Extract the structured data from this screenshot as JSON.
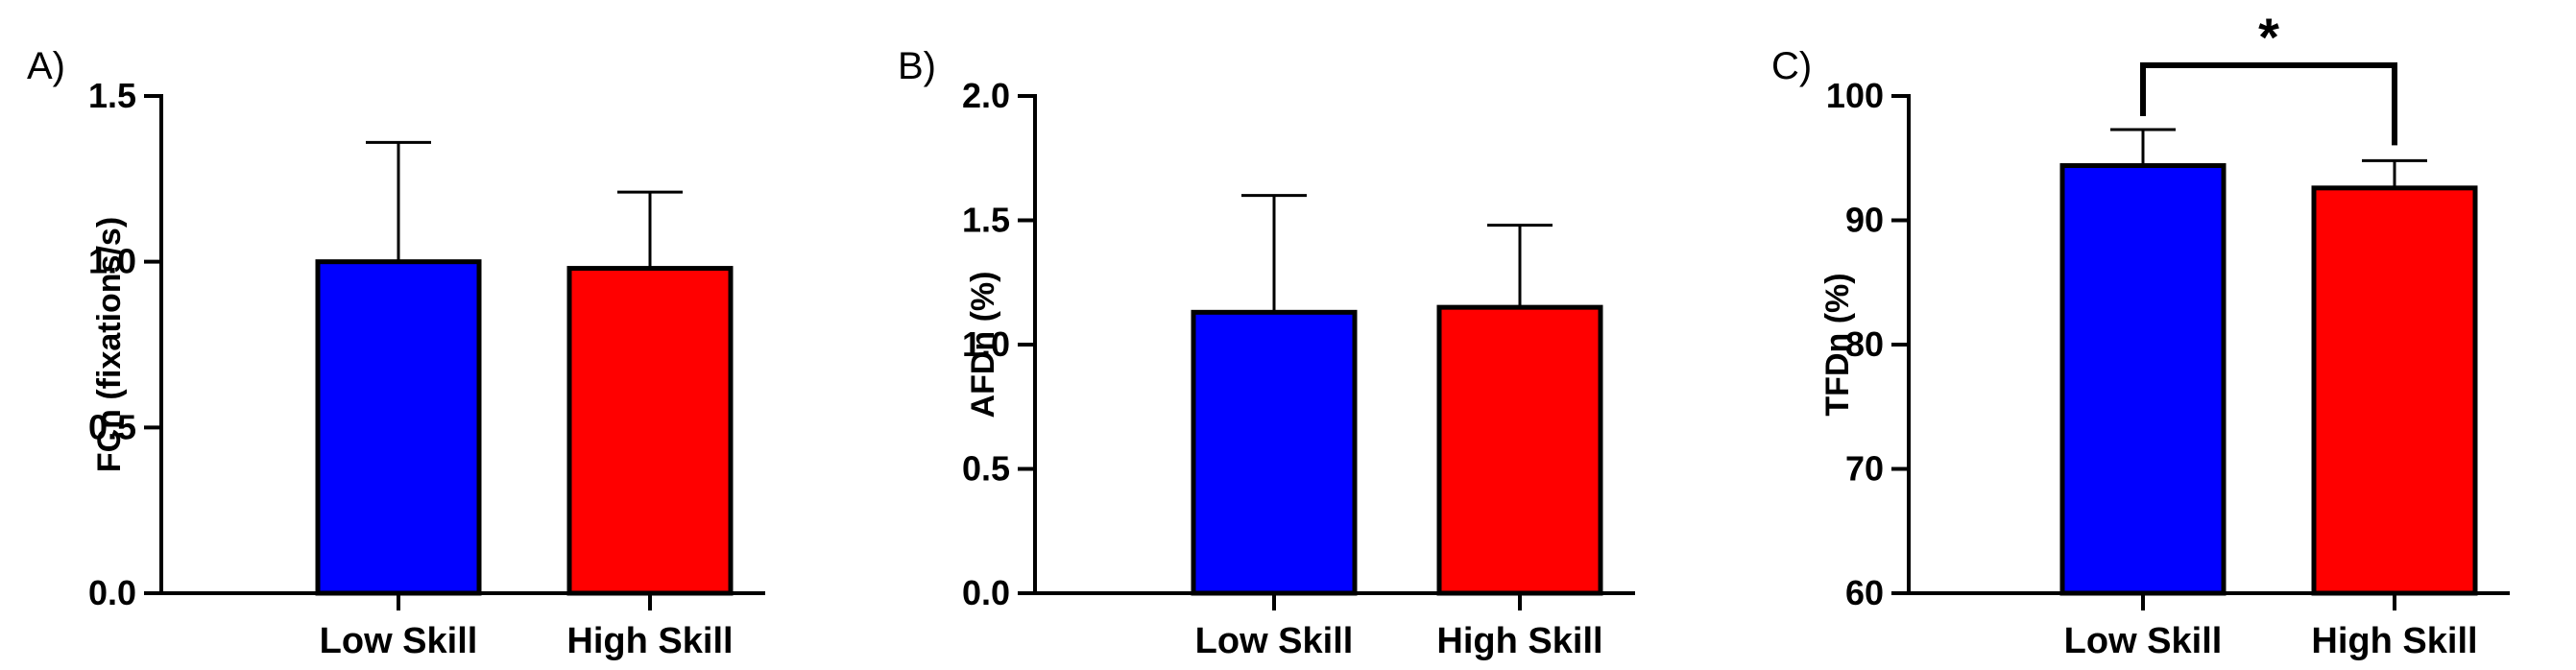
{
  "figure": {
    "panels": [
      "A)",
      "B)",
      "C)"
    ]
  },
  "chart_data": [
    {
      "type": "bar",
      "panel": "A)",
      "categories": [
        "Low Skill",
        "High Skill"
      ],
      "values": [
        1.0,
        0.98
      ],
      "error_upper": [
        0.36,
        0.23
      ],
      "colors": [
        "#0000ff",
        "#ff0000"
      ],
      "ylabel": "FCn (fixations/s)",
      "ylim": [
        0,
        1.5
      ],
      "yticks": [
        0.0,
        0.5,
        1.0,
        1.5
      ],
      "ytick_labels": [
        "0.0",
        "0.5",
        "1.0",
        "1.5"
      ],
      "significance": null
    },
    {
      "type": "bar",
      "panel": "B)",
      "categories": [
        "Low Skill",
        "High Skill"
      ],
      "values": [
        1.13,
        1.15
      ],
      "error_upper": [
        0.47,
        0.33
      ],
      "colors": [
        "#0000ff",
        "#ff0000"
      ],
      "ylabel": "AFDn (%)",
      "ylim": [
        0,
        2.0
      ],
      "yticks": [
        0.0,
        0.5,
        1.0,
        1.5,
        2.0
      ],
      "ytick_labels": [
        "0.0",
        "0.5",
        "1.0",
        "1.5",
        "2.0"
      ],
      "significance": null
    },
    {
      "type": "bar",
      "panel": "C)",
      "categories": [
        "Low Skill",
        "High Skill"
      ],
      "values": [
        94.4,
        92.6
      ],
      "error_upper": [
        2.9,
        2.2
      ],
      "colors": [
        "#0000ff",
        "#ff0000"
      ],
      "ylabel": "TFDn  (%)",
      "ylim": [
        60,
        100
      ],
      "yticks": [
        60,
        70,
        80,
        90,
        100
      ],
      "ytick_labels": [
        "60",
        "70",
        "80",
        "90",
        "100"
      ],
      "significance": {
        "between": [
          0,
          1
        ],
        "label": "*"
      }
    }
  ]
}
